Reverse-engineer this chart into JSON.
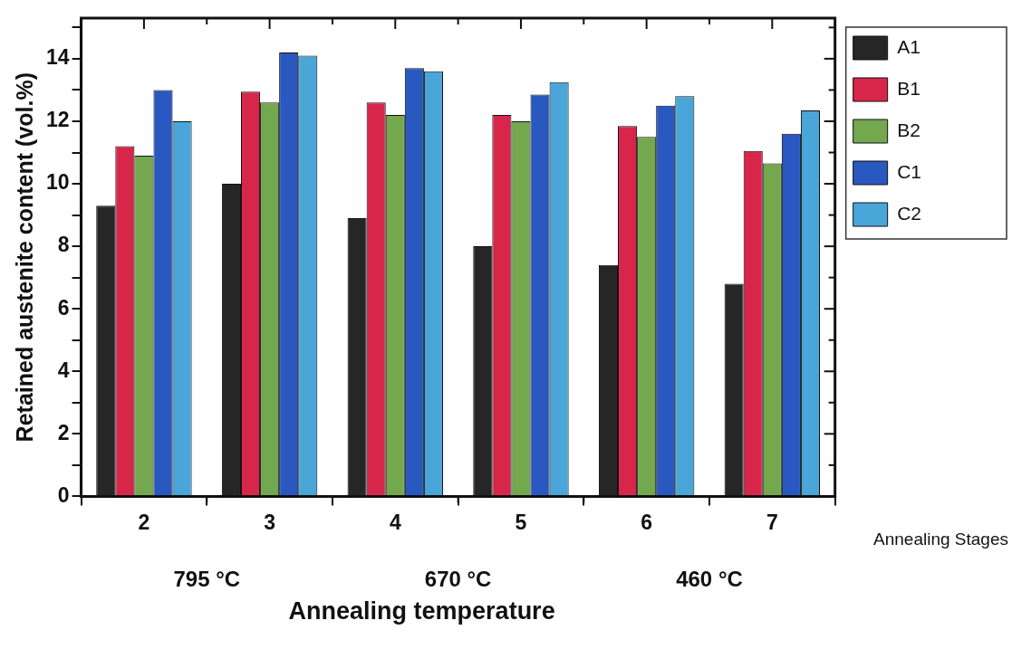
{
  "chart_data": {
    "type": "bar",
    "categories": [
      "2",
      "3",
      "4",
      "5",
      "6",
      "7"
    ],
    "series": [
      {
        "name": "A1",
        "color": "#262626",
        "values": [
          9.3,
          10.0,
          8.9,
          8.0,
          7.4,
          6.8
        ]
      },
      {
        "name": "B1",
        "color": "#d8264a",
        "values": [
          11.2,
          12.95,
          12.6,
          12.2,
          11.85,
          11.05
        ]
      },
      {
        "name": "B2",
        "color": "#74a84e",
        "values": [
          10.9,
          12.6,
          12.2,
          12.0,
          11.5,
          10.65
        ]
      },
      {
        "name": "C1",
        "color": "#2858c0",
        "values": [
          13.0,
          14.2,
          13.7,
          12.85,
          12.5,
          11.6
        ]
      },
      {
        "name": "C2",
        "color": "#4aa6d8",
        "values": [
          12.0,
          14.1,
          13.6,
          13.25,
          12.8,
          12.35
        ]
      }
    ],
    "ylabel": "Retained austenite content (vol.%)",
    "xlabel": "Annealing temperature",
    "annotations": [
      "795 °C",
      "670 °C",
      "460 °C",
      "Annealing Stages"
    ],
    "ylim": [
      0,
      15.3
    ],
    "yticks": [
      0,
      {
        "value": 1,
        "label": null
      },
      2,
      {
        "value": 3,
        "label": null
      },
      4,
      {
        "value": 5,
        "label": null
      },
      6,
      {
        "value": 7,
        "label": null
      },
      8,
      {
        "value": 9,
        "label": null
      },
      10,
      {
        "value": 11,
        "label": null
      },
      12,
      {
        "value": 13,
        "label": null
      },
      14,
      {
        "value": 15,
        "label": null
      }
    ],
    "grid": false,
    "legend": "top right"
  }
}
